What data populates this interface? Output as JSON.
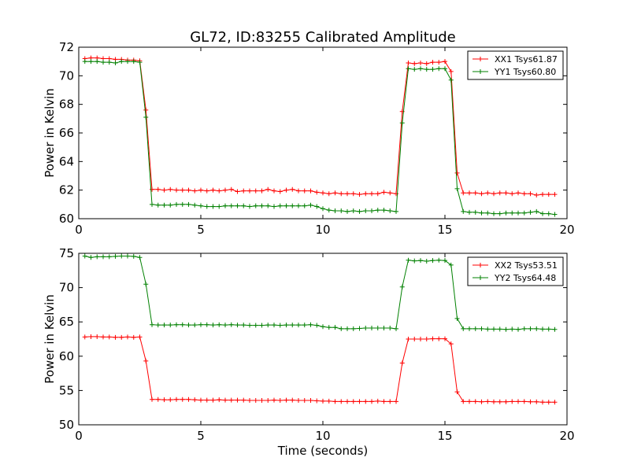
{
  "chart_data": [
    {
      "type": "line",
      "title": "GL72, ID:83255 Calibrated Amplitude",
      "xlabel": "",
      "ylabel": "Power in Kelvin",
      "xlim": [
        0,
        20
      ],
      "ylim": [
        60,
        72
      ],
      "x_ticks": [
        "0",
        "5",
        "10",
        "15",
        "20"
      ],
      "y_ticks": [
        "60",
        "62",
        "64",
        "66",
        "68",
        "70",
        "72"
      ],
      "legend_position": "upper-right",
      "grid": false,
      "x": [
        0.25,
        0.5,
        0.75,
        1.0,
        1.25,
        1.5,
        1.75,
        2.0,
        2.25,
        2.5,
        2.75,
        3.0,
        3.25,
        3.5,
        3.75,
        4.0,
        4.25,
        4.5,
        4.75,
        5.0,
        5.25,
        5.5,
        5.75,
        6.0,
        6.25,
        6.5,
        6.75,
        7.0,
        7.25,
        7.5,
        7.75,
        8.0,
        8.25,
        8.5,
        8.75,
        9.0,
        9.25,
        9.5,
        9.75,
        10.0,
        10.25,
        10.5,
        10.75,
        11.0,
        11.25,
        11.5,
        11.75,
        12.0,
        12.25,
        12.5,
        12.75,
        13.0,
        13.25,
        13.5,
        13.75,
        14.0,
        14.25,
        14.5,
        14.75,
        15.0,
        15.25,
        15.5,
        15.75,
        16.0,
        16.25,
        16.5,
        16.75,
        17.0,
        17.25,
        17.5,
        17.75,
        18.0,
        18.25,
        18.5,
        18.75,
        19.0,
        19.25,
        19.5
      ],
      "series": [
        {
          "name": "XX1 Tsys61.87",
          "color": "#ff0000",
          "values": [
            71.2,
            71.25,
            71.25,
            71.2,
            71.2,
            71.15,
            71.15,
            71.1,
            71.1,
            71.05,
            67.6,
            62.05,
            62.05,
            62.0,
            62.05,
            62.0,
            62.0,
            62.0,
            61.95,
            62.0,
            61.95,
            62.0,
            61.95,
            62.0,
            62.05,
            61.9,
            61.95,
            61.95,
            61.95,
            61.95,
            62.05,
            61.95,
            61.9,
            62.0,
            62.05,
            61.95,
            61.95,
            61.95,
            61.85,
            61.8,
            61.75,
            61.8,
            61.75,
            61.75,
            61.75,
            61.7,
            61.75,
            61.75,
            61.75,
            61.85,
            61.8,
            61.75,
            67.5,
            70.9,
            70.85,
            70.9,
            70.85,
            70.95,
            70.95,
            71.0,
            70.3,
            63.2,
            61.8,
            61.8,
            61.8,
            61.75,
            61.8,
            61.75,
            61.8,
            61.8,
            61.75,
            61.8,
            61.75,
            61.75,
            61.65,
            61.7,
            61.7,
            61.7
          ]
        },
        {
          "name": "YY1 Tsys60.80",
          "color": "#008000",
          "values": [
            71.0,
            71.0,
            71.0,
            70.95,
            70.95,
            70.9,
            71.0,
            71.0,
            71.0,
            70.95,
            67.1,
            61.0,
            60.95,
            60.95,
            60.95,
            61.0,
            61.0,
            61.0,
            60.95,
            60.9,
            60.85,
            60.85,
            60.85,
            60.9,
            60.9,
            60.9,
            60.9,
            60.85,
            60.9,
            60.9,
            60.9,
            60.85,
            60.9,
            60.9,
            60.9,
            60.9,
            60.9,
            60.95,
            60.85,
            60.7,
            60.6,
            60.55,
            60.55,
            60.5,
            60.55,
            60.5,
            60.55,
            60.55,
            60.6,
            60.6,
            60.55,
            60.5,
            66.7,
            70.5,
            70.45,
            70.5,
            70.45,
            70.45,
            70.5,
            70.5,
            69.7,
            62.1,
            60.5,
            60.45,
            60.45,
            60.4,
            60.4,
            60.35,
            60.35,
            60.4,
            60.4,
            60.4,
            60.4,
            60.45,
            60.5,
            60.35,
            60.35,
            60.3
          ]
        }
      ]
    },
    {
      "type": "line",
      "title": "",
      "xlabel": "Time (seconds)",
      "ylabel": "Power in Kelvin",
      "xlim": [
        0,
        20
      ],
      "ylim": [
        50,
        75
      ],
      "x_ticks": [
        "0",
        "5",
        "10",
        "15",
        "20"
      ],
      "y_ticks": [
        "50",
        "55",
        "60",
        "65",
        "70",
        "75"
      ],
      "legend_position": "upper-right",
      "grid": false,
      "x": [
        0.25,
        0.5,
        0.75,
        1.0,
        1.25,
        1.5,
        1.75,
        2.0,
        2.25,
        2.5,
        2.75,
        3.0,
        3.25,
        3.5,
        3.75,
        4.0,
        4.25,
        4.5,
        4.75,
        5.0,
        5.25,
        5.5,
        5.75,
        6.0,
        6.25,
        6.5,
        6.75,
        7.0,
        7.25,
        7.5,
        7.75,
        8.0,
        8.25,
        8.5,
        8.75,
        9.0,
        9.25,
        9.5,
        9.75,
        10.0,
        10.25,
        10.5,
        10.75,
        11.0,
        11.25,
        11.5,
        11.75,
        12.0,
        12.25,
        12.5,
        12.75,
        13.0,
        13.25,
        13.5,
        13.75,
        14.0,
        14.25,
        14.5,
        14.75,
        15.0,
        15.25,
        15.5,
        15.75,
        16.0,
        16.25,
        16.5,
        16.75,
        17.0,
        17.25,
        17.5,
        17.75,
        18.0,
        18.25,
        18.5,
        18.75,
        19.0,
        19.25,
        19.5
      ],
      "series": [
        {
          "name": "XX2 Tsys53.51",
          "color": "#ff0000",
          "values": [
            62.8,
            62.85,
            62.85,
            62.8,
            62.8,
            62.75,
            62.75,
            62.8,
            62.75,
            62.8,
            59.3,
            53.7,
            53.7,
            53.65,
            53.65,
            53.7,
            53.7,
            53.7,
            53.65,
            53.6,
            53.6,
            53.6,
            53.65,
            53.6,
            53.6,
            53.6,
            53.6,
            53.55,
            53.55,
            53.55,
            53.55,
            53.6,
            53.55,
            53.6,
            53.6,
            53.55,
            53.55,
            53.55,
            53.5,
            53.45,
            53.45,
            53.4,
            53.4,
            53.4,
            53.4,
            53.4,
            53.4,
            53.4,
            53.45,
            53.4,
            53.4,
            53.4,
            59.0,
            62.5,
            62.5,
            62.5,
            62.5,
            62.55,
            62.55,
            62.55,
            61.8,
            54.8,
            53.4,
            53.4,
            53.4,
            53.35,
            53.4,
            53.35,
            53.35,
            53.35,
            53.4,
            53.4,
            53.4,
            53.35,
            53.35,
            53.3,
            53.3,
            53.3
          ]
        },
        {
          "name": "YY2 Tsys64.48",
          "color": "#008000",
          "values": [
            74.6,
            74.4,
            74.5,
            74.5,
            74.5,
            74.55,
            74.6,
            74.6,
            74.55,
            74.4,
            70.5,
            64.6,
            64.55,
            64.55,
            64.55,
            64.6,
            64.6,
            64.55,
            64.55,
            64.6,
            64.6,
            64.55,
            64.6,
            64.55,
            64.6,
            64.55,
            64.55,
            64.5,
            64.5,
            64.5,
            64.55,
            64.55,
            64.5,
            64.55,
            64.55,
            64.55,
            64.55,
            64.6,
            64.5,
            64.3,
            64.2,
            64.2,
            64.0,
            64.0,
            64.0,
            64.05,
            64.1,
            64.1,
            64.1,
            64.1,
            64.1,
            64.0,
            70.1,
            74.0,
            73.9,
            73.95,
            73.85,
            73.95,
            74.0,
            73.95,
            73.3,
            65.5,
            64.0,
            64.0,
            64.0,
            64.0,
            63.95,
            63.95,
            63.95,
            63.9,
            63.95,
            63.9,
            64.0,
            64.0,
            64.0,
            63.95,
            63.95,
            63.9
          ]
        }
      ]
    }
  ]
}
